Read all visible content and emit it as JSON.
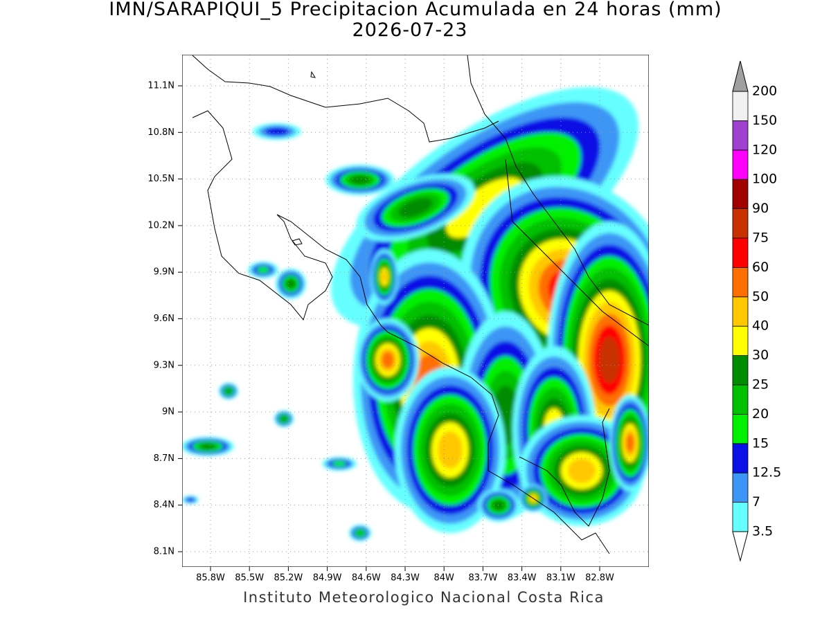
{
  "header": {
    "title": "IMN/SARAPIQUI_5 Precipitacion Acumulada en 24 horas (mm)",
    "date": "2026-07-23"
  },
  "map": {
    "lat_ticks": [
      "11.1N",
      "10.8N",
      "10.5N",
      "10.2N",
      "9.9N",
      "9.6N",
      "9.3N",
      "9N",
      "8.7N",
      "8.4N",
      "8.1N"
    ],
    "lon_ticks": [
      "85.8W",
      "85.5W",
      "85.2W",
      "84.9W",
      "84.6W",
      "84.3W",
      "84W",
      "83.7W",
      "83.4W",
      "83.1W",
      "82.8W"
    ]
  },
  "colorbar": {
    "levels": [
      3.5,
      7,
      12.5,
      15,
      20,
      25,
      30,
      40,
      50,
      60,
      75,
      90,
      100,
      120,
      150,
      200
    ],
    "colors": [
      "#ffffff",
      "#66ffff",
      "#3c96f5",
      "#0a10e6",
      "#00f000",
      "#00c000",
      "#008c00",
      "#ffff00",
      "#ffc800",
      "#ff6e00",
      "#ff0000",
      "#c83200",
      "#a00000",
      "#ff00ff",
      "#a040d0",
      "#f0f0f0",
      "#a0a0a0"
    ]
  },
  "footer": "Instituto Meteorologico Nacional Costa Rica"
}
